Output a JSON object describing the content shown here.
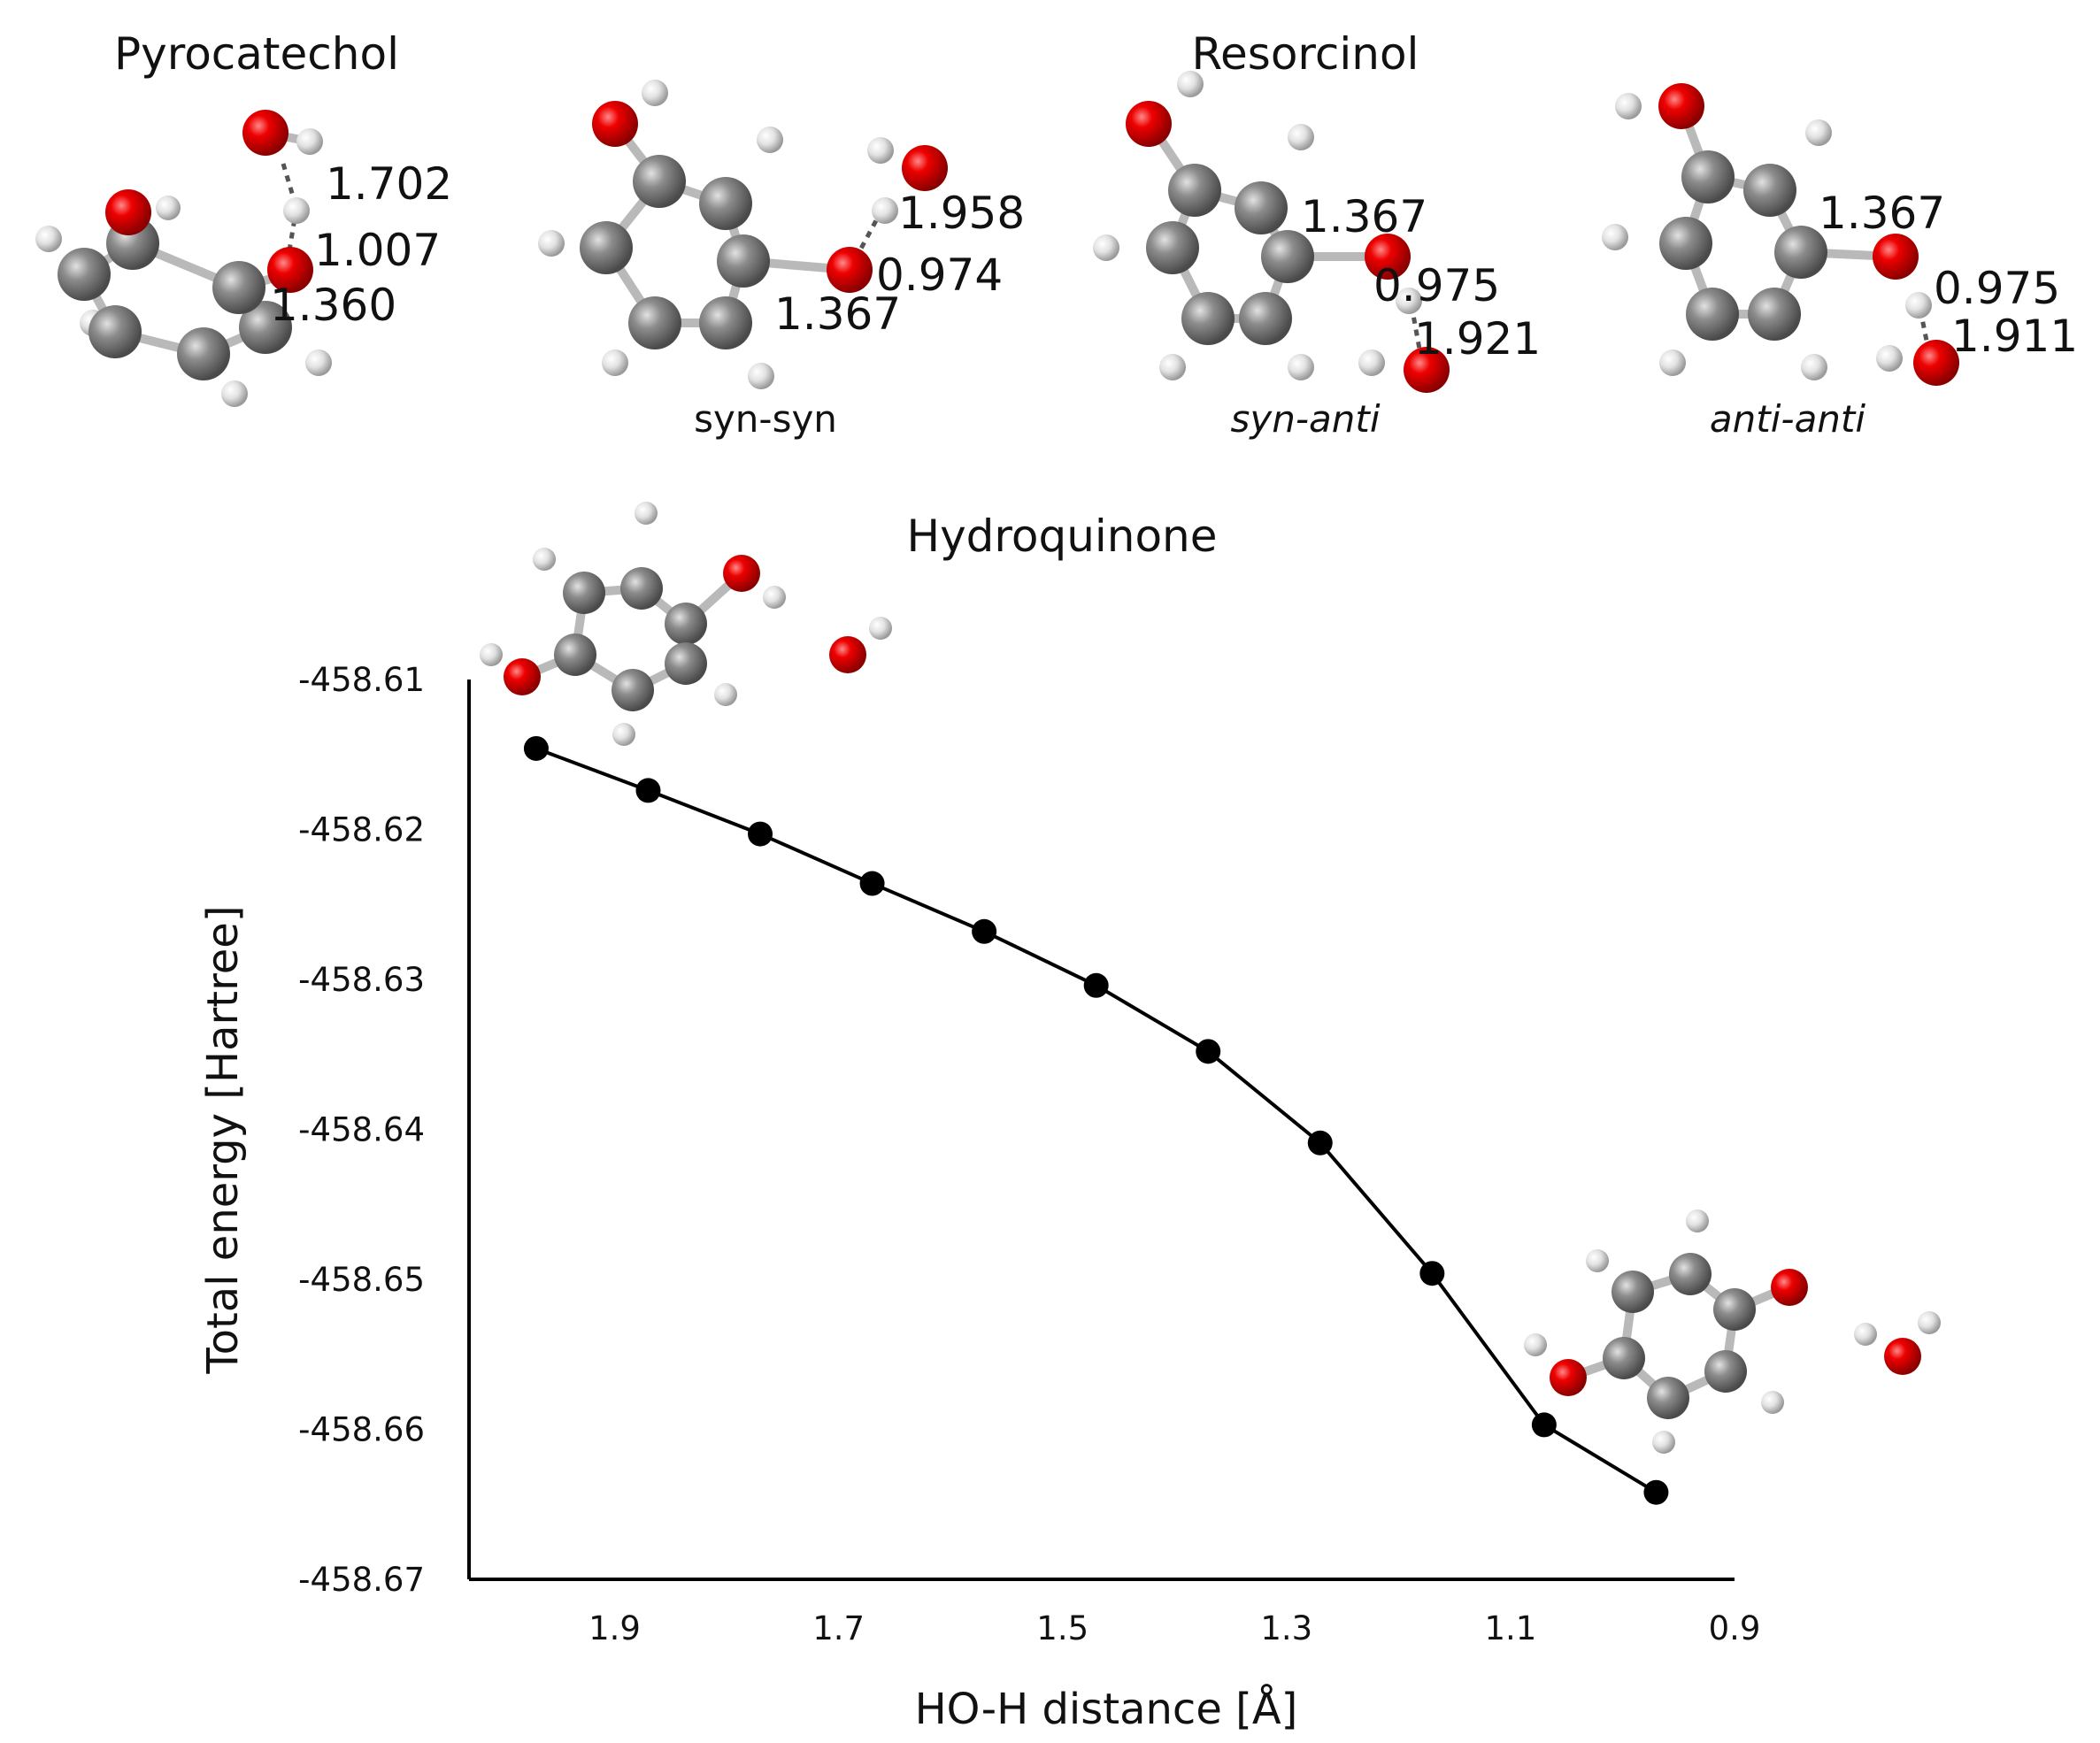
{
  "molecules": {
    "pyrocatechol": {
      "title": "Pyrocatechol",
      "distances": [
        "1.702",
        "1.007",
        "1.360"
      ]
    },
    "resorcinol": {
      "title": "Resorcinol",
      "conformers": [
        {
          "label": "syn-syn",
          "italic": false,
          "distances": [
            "1.958",
            "0.974",
            "1.367"
          ]
        },
        {
          "label": "syn-anti",
          "italic": true,
          "distances": [
            "1.367",
            "0.975",
            "1.921"
          ]
        },
        {
          "label": "anti-anti",
          "italic": true,
          "distances": [
            "1.367",
            "0.975",
            "1.911"
          ]
        }
      ]
    },
    "hydroquinone": {
      "title": "Hydroquinone"
    }
  },
  "colors": {
    "oxygen": "#e00000",
    "carbon": "#8a8a8a",
    "hydrogen": "#e6e6e6",
    "line": "#000000"
  },
  "chart_data": {
    "type": "line",
    "title": "Hydroquinone",
    "xlabel": "HO-H distance [Å]",
    "ylabel": "Total energy [Hartree]",
    "x_reversed": true,
    "xlim": [
      2.03,
      0.9
    ],
    "ylim": [
      -458.67,
      -458.61
    ],
    "x_ticks": [
      "1.9",
      "1.7",
      "1.5",
      "1.3",
      "1.1",
      "0.9"
    ],
    "x_tick_values": [
      1.9,
      1.7,
      1.5,
      1.3,
      1.1,
      0.9
    ],
    "y_ticks": [
      "-458.61",
      "-458.62",
      "-458.63",
      "-458.64",
      "-458.65",
      "-458.66",
      "-458.67"
    ],
    "y_tick_values": [
      -458.61,
      -458.62,
      -458.63,
      -458.64,
      -458.65,
      -458.66,
      -458.67
    ],
    "series": [
      {
        "name": "Hydroquinone",
        "x": [
          1.97,
          1.87,
          1.77,
          1.67,
          1.57,
          1.47,
          1.37,
          1.27,
          1.17,
          1.07,
          0.97
        ],
        "y": [
          -458.6146,
          -458.6174,
          -458.6203,
          -458.6236,
          -458.6268,
          -458.6304,
          -458.6348,
          -458.6409,
          -458.6496,
          -458.6597,
          -458.6642
        ]
      }
    ]
  }
}
